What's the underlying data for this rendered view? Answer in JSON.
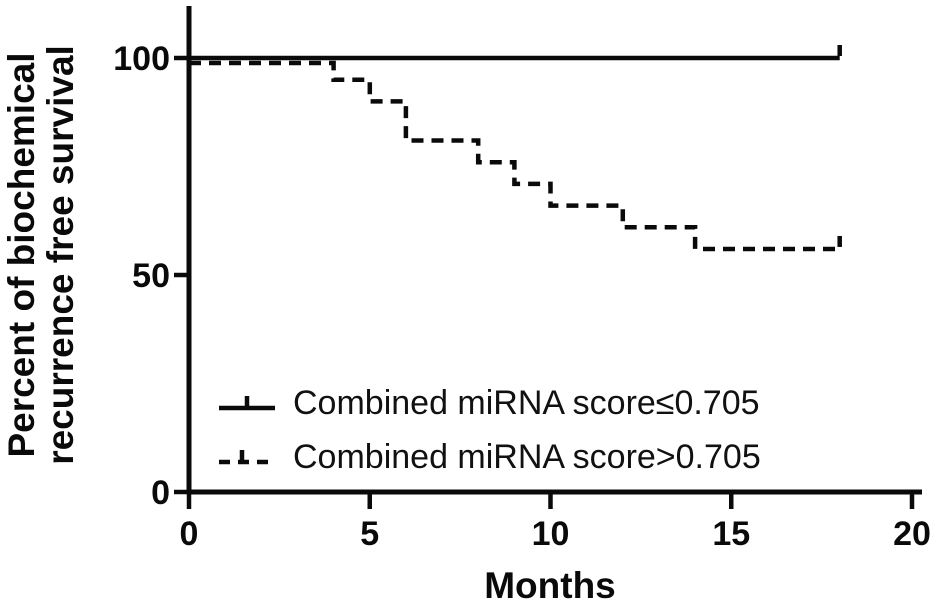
{
  "figure": {
    "background_color": "#ffffff",
    "ink_color": "#0a0a0a"
  },
  "chart_data": {
    "type": "line",
    "subtype": "kaplan_meier_step",
    "title": "",
    "xlabel": "Months",
    "ylabel_lines": [
      "Percent of biochemical",
      "recurrence free survival"
    ],
    "xlim": [
      0,
      20
    ],
    "ylim": [
      0,
      100
    ],
    "x_ticks": [
      0,
      5,
      10,
      15,
      20
    ],
    "x_tick_labels": [
      "0",
      "5",
      "10",
      "15",
      "20"
    ],
    "y_ticks": [
      100,
      50,
      0
    ],
    "y_tick_labels": [
      "100",
      "50",
      "0"
    ],
    "grid": false,
    "legend_position": "inside-lower-left",
    "series": [
      {
        "name": "Combined miRNA score≤0.705",
        "line_style": "solid",
        "color": "#0a0a0a",
        "steps": [
          [
            0,
            100
          ],
          [
            18,
            100
          ]
        ],
        "end_censor_tick_month": 18,
        "final_percent": 100
      },
      {
        "name": "Combined miRNA score>0.705",
        "line_style": "dashed",
        "color": "#0a0a0a",
        "steps": [
          [
            0,
            100
          ],
          [
            4,
            100
          ],
          [
            4,
            95
          ],
          [
            5,
            95
          ],
          [
            5,
            90
          ],
          [
            6,
            90
          ],
          [
            6,
            81
          ],
          [
            8,
            81
          ],
          [
            8,
            76
          ],
          [
            9,
            76
          ],
          [
            9,
            71
          ],
          [
            10,
            71
          ],
          [
            10,
            66
          ],
          [
            12,
            66
          ],
          [
            12,
            61
          ],
          [
            14,
            61
          ],
          [
            14,
            56
          ],
          [
            18,
            56
          ]
        ],
        "end_censor_tick_month": 18,
        "final_percent": 56
      }
    ]
  }
}
